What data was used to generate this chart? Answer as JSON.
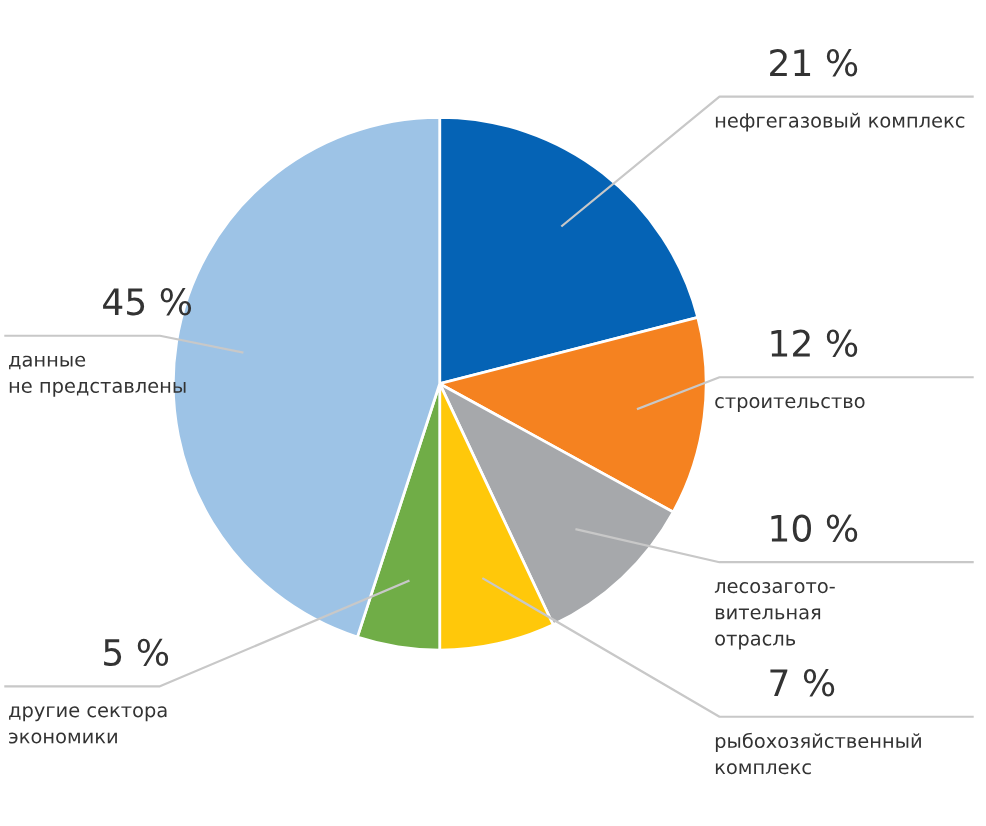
{
  "chart_data": {
    "type": "pie",
    "categories": [
      "нефгегазовый комплекс",
      "строительство",
      "лесозагото-\nвительная\nотрасль",
      "рыбохозяйственный\nкомплекс",
      "другие сектора\nэкономики",
      "данные\nне представлены"
    ],
    "values": [
      21,
      12,
      10,
      7,
      5,
      45
    ],
    "colors": [
      "#0563b5",
      "#f58220",
      "#a6a8ab",
      "#ffc80a",
      "#70ad47",
      "#9dc3e6"
    ],
    "value_labels": [
      "21 %",
      "12 %",
      "10 %",
      "7 %",
      "5 %",
      "45 %"
    ],
    "legend": false
  }
}
